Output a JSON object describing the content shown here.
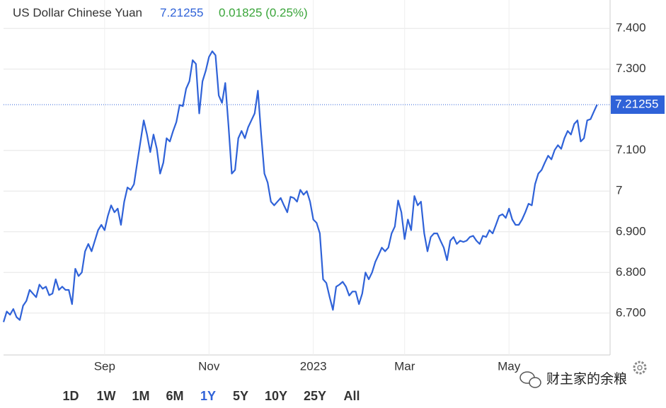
{
  "chart_data": {
    "type": "line",
    "title": "US Dollar Chinese Yuan",
    "last_value": 7.21255,
    "change": "0.01825 (0.25%)",
    "color": "#2f62d8",
    "values": [
      6.678,
      6.704,
      6.696,
      6.71,
      6.69,
      6.683,
      6.718,
      6.73,
      6.757,
      6.748,
      6.739,
      6.77,
      6.76,
      6.765,
      6.744,
      6.748,
      6.783,
      6.757,
      6.765,
      6.757,
      6.757,
      6.722,
      6.809,
      6.791,
      6.8,
      6.852,
      6.87,
      6.852,
      6.878,
      6.904,
      6.917,
      6.904,
      6.939,
      6.965,
      6.948,
      6.957,
      6.917,
      6.974,
      7.009,
      7.003,
      7.017,
      7.07,
      7.122,
      7.174,
      7.139,
      7.096,
      7.139,
      7.104,
      7.043,
      7.07,
      7.13,
      7.122,
      7.148,
      7.17,
      7.212,
      7.209,
      7.252,
      7.27,
      7.322,
      7.313,
      7.191,
      7.27,
      7.296,
      7.33,
      7.344,
      7.334,
      7.235,
      7.217,
      7.266,
      7.16,
      7.043,
      7.052,
      7.13,
      7.148,
      7.13,
      7.157,
      7.174,
      7.191,
      7.247,
      7.139,
      7.043,
      7.021,
      6.974,
      6.965,
      6.974,
      6.983,
      6.965,
      6.948,
      6.986,
      6.983,
      6.974,
      7.003,
      6.991,
      7.0,
      6.974,
      6.93,
      6.922,
      6.896,
      6.783,
      6.774,
      6.739,
      6.708,
      6.765,
      6.77,
      6.777,
      6.765,
      6.743,
      6.753,
      6.753,
      6.722,
      6.748,
      6.8,
      6.783,
      6.8,
      6.826,
      6.843,
      6.861,
      6.852,
      6.861,
      6.896,
      6.913,
      6.977,
      6.948,
      6.882,
      6.93,
      6.904,
      6.988,
      6.965,
      6.974,
      6.896,
      6.852,
      6.887,
      6.896,
      6.896,
      6.878,
      6.861,
      6.83,
      6.878,
      6.887,
      6.87,
      6.878,
      6.875,
      6.878,
      6.887,
      6.89,
      6.878,
      6.87,
      6.89,
      6.887,
      6.904,
      6.896,
      6.917,
      6.939,
      6.943,
      6.934,
      6.957,
      6.93,
      6.917,
      6.917,
      6.93,
      6.948,
      6.969,
      6.965,
      7.017,
      7.043,
      7.052,
      7.07,
      7.087,
      7.078,
      7.101,
      7.113,
      7.104,
      7.13,
      7.148,
      7.139,
      7.165,
      7.174,
      7.122,
      7.13,
      7.174,
      7.177,
      7.195,
      7.21255
    ],
    "xlim": [
      0,
      186
    ],
    "xticks": [
      {
        "value": 31,
        "label": "Sep"
      },
      {
        "value": 63,
        "label": "Nov"
      },
      {
        "value": 95,
        "label": "2023"
      },
      {
        "value": 123,
        "label": "Mar"
      },
      {
        "value": 155,
        "label": "May"
      }
    ],
    "ylim": [
      6.597,
      7.47
    ],
    "yticks": [
      {
        "value": 6.7,
        "label": "6.700"
      },
      {
        "value": 6.8,
        "label": "6.800"
      },
      {
        "value": 6.9,
        "label": "6.900"
      },
      7,
      {
        "value": 7.1,
        "label": "7.100"
      },
      {
        "value": 7.3,
        "label": "7.300"
      },
      {
        "value": 7.4,
        "label": "7.400"
      }
    ],
    "grid": true
  },
  "ranges": [
    "1D",
    "1W",
    "1M",
    "6M",
    "1Y",
    "5Y",
    "10Y",
    "25Y",
    "All"
  ],
  "selected_range": 4,
  "watermark": "财主家的余粮"
}
